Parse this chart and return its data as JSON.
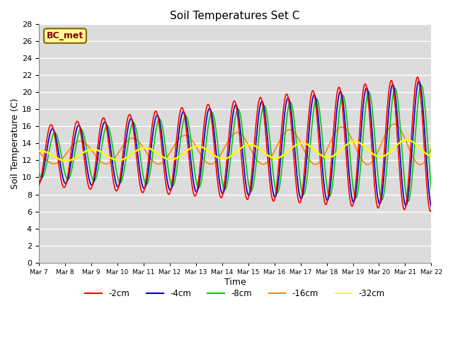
{
  "title": "Soil Temperatures Set C",
  "xlabel": "Time",
  "ylabel": "Soil Temperature (C)",
  "ylim": [
    0,
    28
  ],
  "x_tick_labels": [
    "Mar 7",
    "Mar 8",
    "Mar 9",
    "Mar 10",
    "Mar 11",
    "Mar 12",
    "Mar 13",
    "Mar 14",
    "Mar 15",
    "Mar 16",
    "Mar 17",
    "Mar 18",
    "Mar 19",
    "Mar 20",
    "Mar 21",
    "Mar 22"
  ],
  "annotation_text": "BC_met",
  "annotation_color": "#8B0000",
  "annotation_bg": "#FFFF99",
  "bg_color": "#DCDCDC",
  "grid_color": "white",
  "series": {
    "-2cm": {
      "color": "#FF0000",
      "lw": 1.2
    },
    "-4cm": {
      "color": "#0000CC",
      "lw": 1.2
    },
    "-8cm": {
      "color": "#00CC00",
      "lw": 1.2
    },
    "-16cm": {
      "color": "#FF8800",
      "lw": 1.2
    },
    "-32cm": {
      "color": "#FFFF00",
      "lw": 1.8
    }
  },
  "legend_order": [
    "-2cm",
    "-4cm",
    "-8cm",
    "-16cm",
    "-32cm"
  ]
}
